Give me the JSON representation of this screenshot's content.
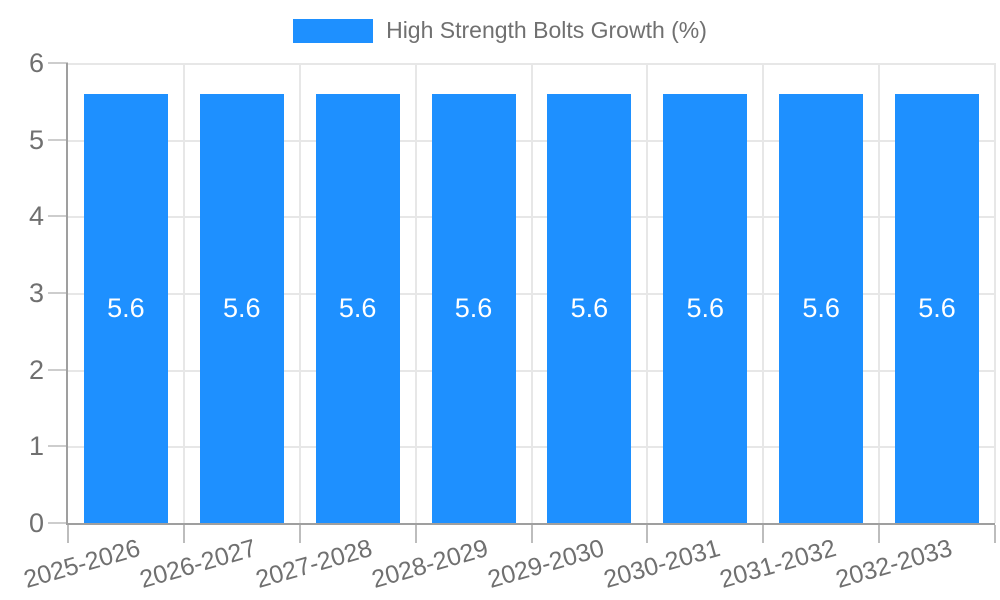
{
  "chart_data": {
    "type": "bar",
    "title": "High Strength Bolts Growth (%)",
    "legend": {
      "position": "top",
      "label": "High Strength Bolts Growth (%)",
      "swatch_color": "#1e90ff",
      "swatch_icon": "filled-rect"
    },
    "categories": [
      "2025-2026",
      "2026-2027",
      "2027-2028",
      "2028-2029",
      "2029-2030",
      "2030-2031",
      "2031-2032",
      "2032-2033"
    ],
    "series": [
      {
        "name": "High Strength Bolts Growth (%)",
        "values": [
          5.6,
          5.6,
          5.6,
          5.6,
          5.6,
          5.6,
          5.6,
          5.6
        ],
        "value_labels": [
          "5.6",
          "5.6",
          "5.6",
          "5.6",
          "5.6",
          "5.6",
          "5.6",
          "5.6"
        ]
      }
    ],
    "xlabel": "",
    "ylabel": "",
    "ylim": [
      0,
      6
    ],
    "y_ticks": [
      0,
      1,
      2,
      3,
      4,
      5,
      6
    ],
    "y_tick_labels": [
      "0",
      "1",
      "2",
      "3",
      "4",
      "5",
      "6"
    ],
    "grid": true,
    "x_label_rotation_deg": -16,
    "colors": {
      "bar": "#1e90ff",
      "bar_label_text": "#ffffff",
      "tick_text": "#707070",
      "grid_line": "#e7e7e7",
      "axis_line": "#9f9f9f",
      "background": "#ffffff"
    }
  }
}
